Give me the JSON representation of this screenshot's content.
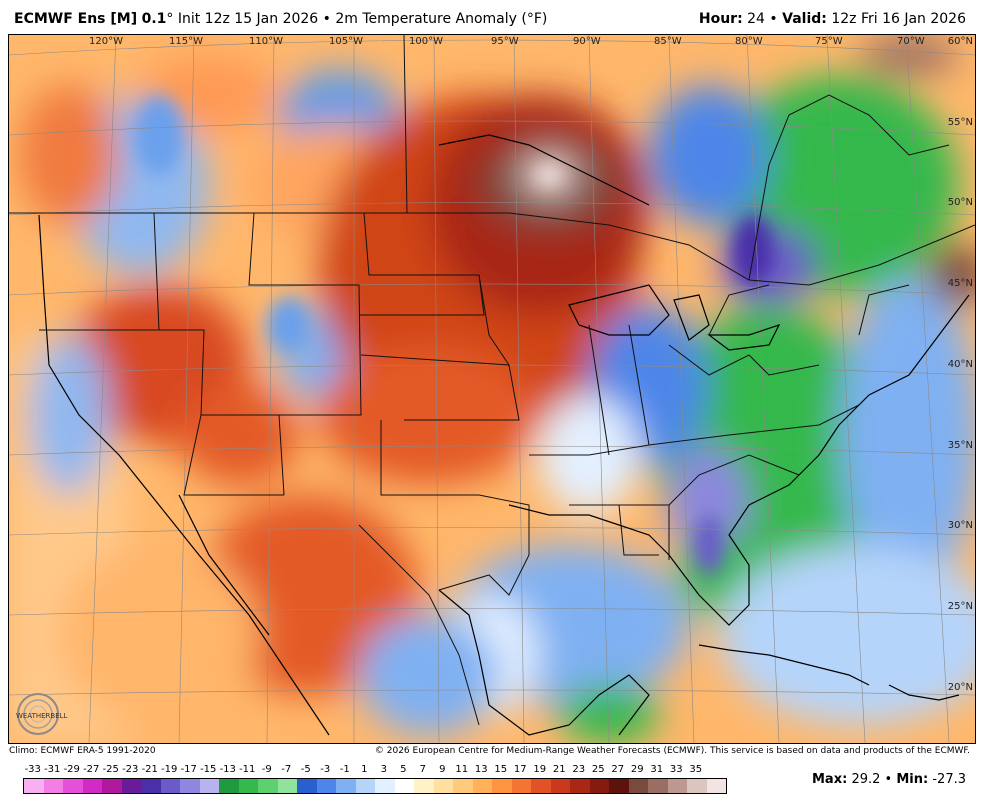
{
  "header": {
    "model": "ECMWF Ens [M]",
    "resolution": "0.1",
    "degree": "°",
    "init": "Init 12z 15 Jan 2026",
    "bullet": "•",
    "product": "2m Temperature Anomaly (°F)",
    "hour_label": "Hour:",
    "hour_value": "24",
    "valid_label": "Valid:",
    "valid_value": "12z Fri 16 Jan 2026"
  },
  "map": {
    "longitudes": [
      "120°W",
      "115°W",
      "110°W",
      "105°W",
      "100°W",
      "95°W",
      "90°W",
      "85°W",
      "80°W",
      "75°W",
      "70°W"
    ],
    "latitudes": [
      "60°N",
      "55°N",
      "50°N",
      "45°N",
      "40°N",
      "35°N",
      "30°N",
      "25°N",
      "20°N"
    ]
  },
  "footer": {
    "climo": "Climo: ECMWF ERA-5 1991-2020",
    "copyright": "© 2026 European Centre for Medium-Range Weather Forecasts (ECMWF). This service is based on data and products of the ECMWF.",
    "max_label": "Max",
    "max_value": "29.2",
    "min_label": "Min",
    "min_value": "-27.3",
    "logo_text": "WEATHERBELL"
  },
  "colorbar": {
    "ticks": [
      "-33",
      "-31",
      "-29",
      "-27",
      "-25",
      "-23",
      "-21",
      "-19",
      "-17",
      "-15",
      "-13",
      "-11",
      "-9",
      "-7",
      "-5",
      "-3",
      "-1",
      "1",
      "3",
      "5",
      "7",
      "9",
      "11",
      "13",
      "15",
      "17",
      "19",
      "21",
      "23",
      "25",
      "27",
      "29",
      "31",
      "33",
      "35"
    ],
    "colors": [
      "#f9b0f0",
      "#f27ee6",
      "#e64fd8",
      "#d22ac4",
      "#b0189e",
      "#6a1b9a",
      "#4a2fa8",
      "#6b5bc9",
      "#8e86e0",
      "#b8b2ef",
      "#1f9a3e",
      "#35b84c",
      "#5fd070",
      "#8fe39a",
      "#2a5fd0",
      "#4d86e8",
      "#7fb0f2",
      "#b5d4fa",
      "#e3f0ff",
      "#ffffff",
      "#fff2c8",
      "#ffe0a0",
      "#ffca7a",
      "#ffb25a",
      "#ff9442",
      "#f57432",
      "#e35226",
      "#c93a1c",
      "#a82814",
      "#841a10",
      "#5e120c",
      "#7a4a3e",
      "#9a6e63",
      "#bd9890",
      "#dcc4bf",
      "#f2e4e2"
    ],
    "highlight_cold": "#7b3fc4",
    "highlight_warm": "#b33a16"
  }
}
